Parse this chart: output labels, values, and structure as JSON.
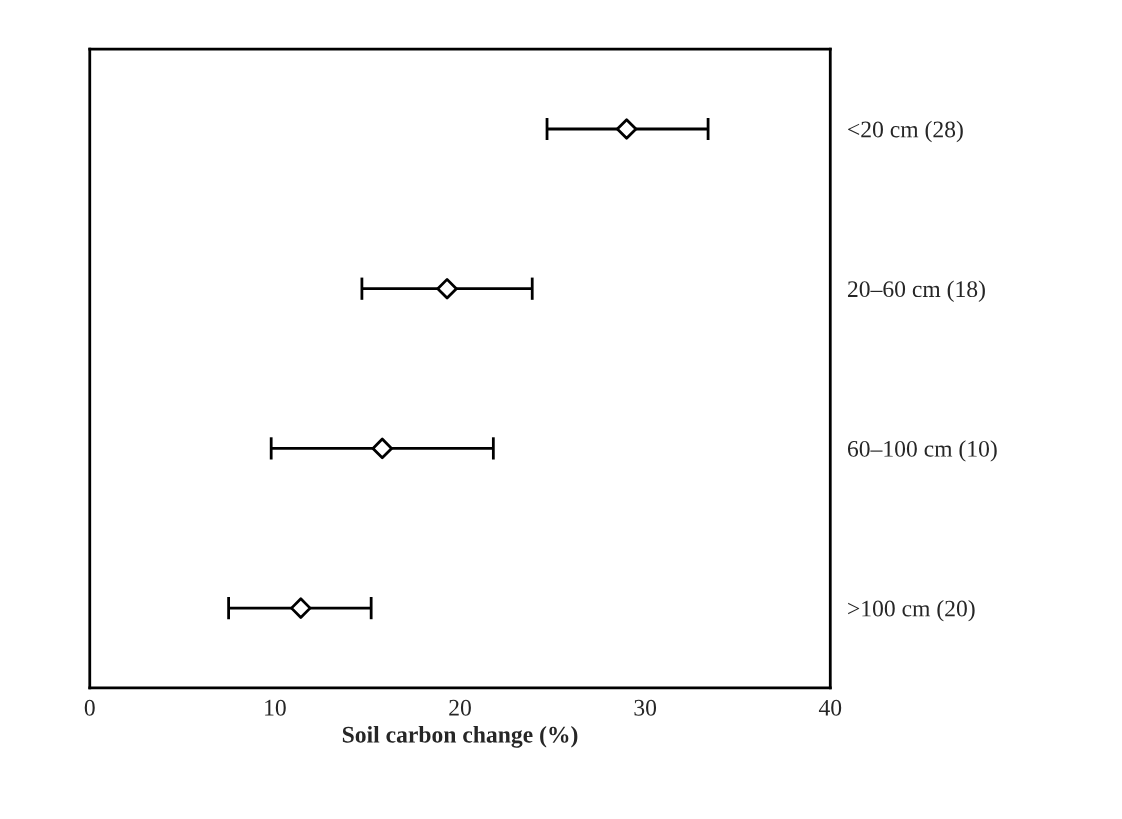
{
  "chart_data": {
    "type": "scatter",
    "orientation": "horizontal",
    "xlabel": "Soil carbon change (%)",
    "categories": [
      "<20 cm (28)",
      "20–60 cm (18)",
      "60–100 cm (10)",
      ">100 cm (20)"
    ],
    "values": [
      29,
      19.3,
      15.8,
      11.4
    ],
    "errors": [
      [
        24.7,
        33.4
      ],
      [
        14.7,
        23.9
      ],
      [
        9.8,
        21.8
      ],
      [
        7.5,
        15.2
      ]
    ],
    "color": "#000000",
    "marker": "diamond",
    "xlim": [
      0,
      40
    ],
    "xticks": [
      0,
      10,
      20,
      30,
      40
    ],
    "grid": false,
    "legend": false
  }
}
